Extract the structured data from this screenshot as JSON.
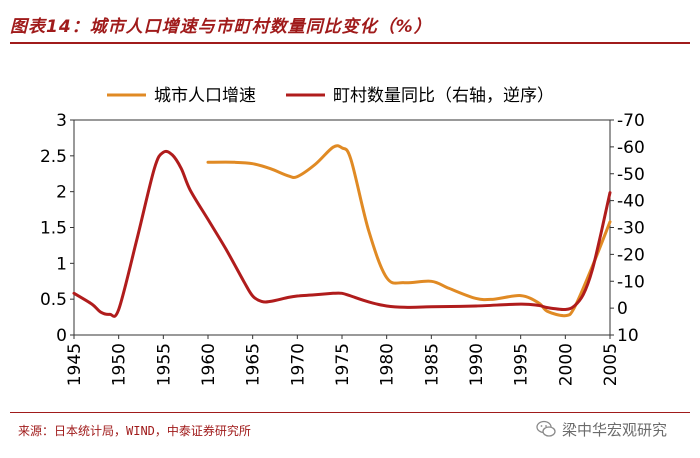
{
  "title": "图表14：城市人口增速与市町村数量同比变化（%）",
  "source": "来源：日本统计局，WIND，中泰证券研究所",
  "watermark": "梁中华宏观研究",
  "colors": {
    "title": "#a01b1b",
    "series_urban": "#e08a24",
    "series_village": "#b01c1c"
  },
  "icons": {
    "watermark": "wechat-icon"
  },
  "chart_data": {
    "type": "line",
    "title": "",
    "xlabel": "",
    "ylabel": "",
    "x_ticks": [
      "1945",
      "1950",
      "1955",
      "1960",
      "1965",
      "1970",
      "1975",
      "1980",
      "1985",
      "1990",
      "1995",
      "2000",
      "2005"
    ],
    "xlim": [
      1945,
      2005
    ],
    "y_left": {
      "lim": [
        0,
        3
      ],
      "ticks": [
        "0",
        "0.5",
        "1",
        "1.5",
        "2",
        "2.5",
        "3"
      ]
    },
    "y_right": {
      "lim": [
        10,
        -70
      ],
      "reversed": true,
      "ticks": [
        "10",
        "0",
        "-10",
        "-20",
        "-30",
        "-40",
        "-50",
        "-60",
        "-70"
      ]
    },
    "grid": false,
    "legend_position": "top",
    "series": [
      {
        "name": "城市人口增速",
        "axis": "left",
        "color": "#e08a24",
        "points": [
          [
            1960,
            2.41
          ],
          [
            1963,
            2.41
          ],
          [
            1965,
            2.39
          ],
          [
            1967,
            2.32
          ],
          [
            1969,
            2.22
          ],
          [
            1970,
            2.21
          ],
          [
            1972,
            2.38
          ],
          [
            1974,
            2.62
          ],
          [
            1975,
            2.61
          ],
          [
            1976,
            2.45
          ],
          [
            1978,
            1.45
          ],
          [
            1980,
            0.8
          ],
          [
            1982,
            0.73
          ],
          [
            1985,
            0.75
          ],
          [
            1987,
            0.65
          ],
          [
            1990,
            0.51
          ],
          [
            1992,
            0.5
          ],
          [
            1995,
            0.55
          ],
          [
            1997,
            0.45
          ],
          [
            1998,
            0.33
          ],
          [
            2000,
            0.27
          ],
          [
            2001,
            0.38
          ],
          [
            2003,
            0.95
          ],
          [
            2005,
            1.58
          ]
        ]
      },
      {
        "name": "町村数量同比（右轴，逆序）",
        "axis": "right",
        "color": "#b01c1c",
        "points": [
          [
            1945,
            -5.5
          ],
          [
            1947,
            -1.5
          ],
          [
            1948,
            1.5
          ],
          [
            1949,
            2.3
          ],
          [
            1950,
            0.5
          ],
          [
            1952,
            -25
          ],
          [
            1954,
            -52
          ],
          [
            1955,
            -58
          ],
          [
            1956,
            -57
          ],
          [
            1957,
            -52
          ],
          [
            1958,
            -44
          ],
          [
            1960,
            -33
          ],
          [
            1962,
            -22
          ],
          [
            1964,
            -10
          ],
          [
            1965,
            -4.5
          ],
          [
            1966,
            -2.5
          ],
          [
            1967,
            -2.5
          ],
          [
            1969,
            -4
          ],
          [
            1970,
            -4.5
          ],
          [
            1972,
            -5
          ],
          [
            1974,
            -5.5
          ],
          [
            1975,
            -5.5
          ],
          [
            1976,
            -4.5
          ],
          [
            1978,
            -2.3
          ],
          [
            1980,
            -0.8
          ],
          [
            1982,
            -0.3
          ],
          [
            1985,
            -0.5
          ],
          [
            1990,
            -0.8
          ],
          [
            1995,
            -1.5
          ],
          [
            1997,
            -1
          ],
          [
            1998,
            -0.2
          ],
          [
            2000,
            0.5
          ],
          [
            2001,
            -0.8
          ],
          [
            2002,
            -5
          ],
          [
            2003,
            -14
          ],
          [
            2004,
            -28
          ],
          [
            2005,
            -43
          ]
        ]
      }
    ]
  }
}
